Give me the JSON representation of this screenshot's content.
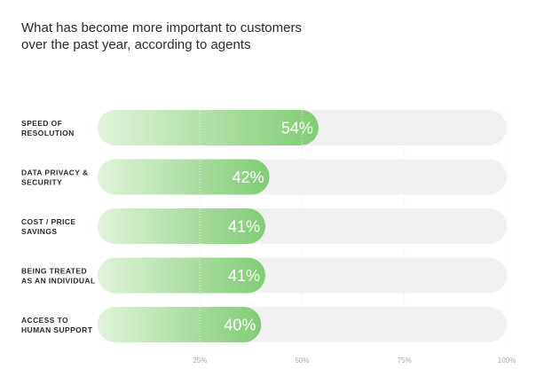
{
  "title_lines": [
    "What has become more important to customers",
    "over the past year, according to agents"
  ],
  "chart_data": {
    "type": "bar",
    "orientation": "horizontal",
    "title": "What has become more important to customers over the past year, according to agents",
    "categories": [
      [
        "SPEED OF",
        "RESOLUTION"
      ],
      [
        "DATA PRIVACY &",
        "SECURITY"
      ],
      [
        "COST / PRICE",
        "SAVINGS"
      ],
      [
        "BEING TREATED",
        "AS AN INDIVIDUAL"
      ],
      [
        "ACCESS TO",
        "HUMAN SUPPORT"
      ]
    ],
    "values": [
      54,
      42,
      41,
      41,
      40
    ],
    "value_labels": [
      "54%",
      "42%",
      "41%",
      "41%",
      "40%"
    ],
    "xlim": [
      0,
      100
    ],
    "xticks": [
      25,
      50,
      75,
      100
    ],
    "xtick_labels": [
      "25%",
      "50%",
      "75%",
      "100%"
    ],
    "colors": {
      "bar_start": "#e2f3dc",
      "bar_end": "#7fcd73",
      "track": "#f1f1f1"
    }
  }
}
